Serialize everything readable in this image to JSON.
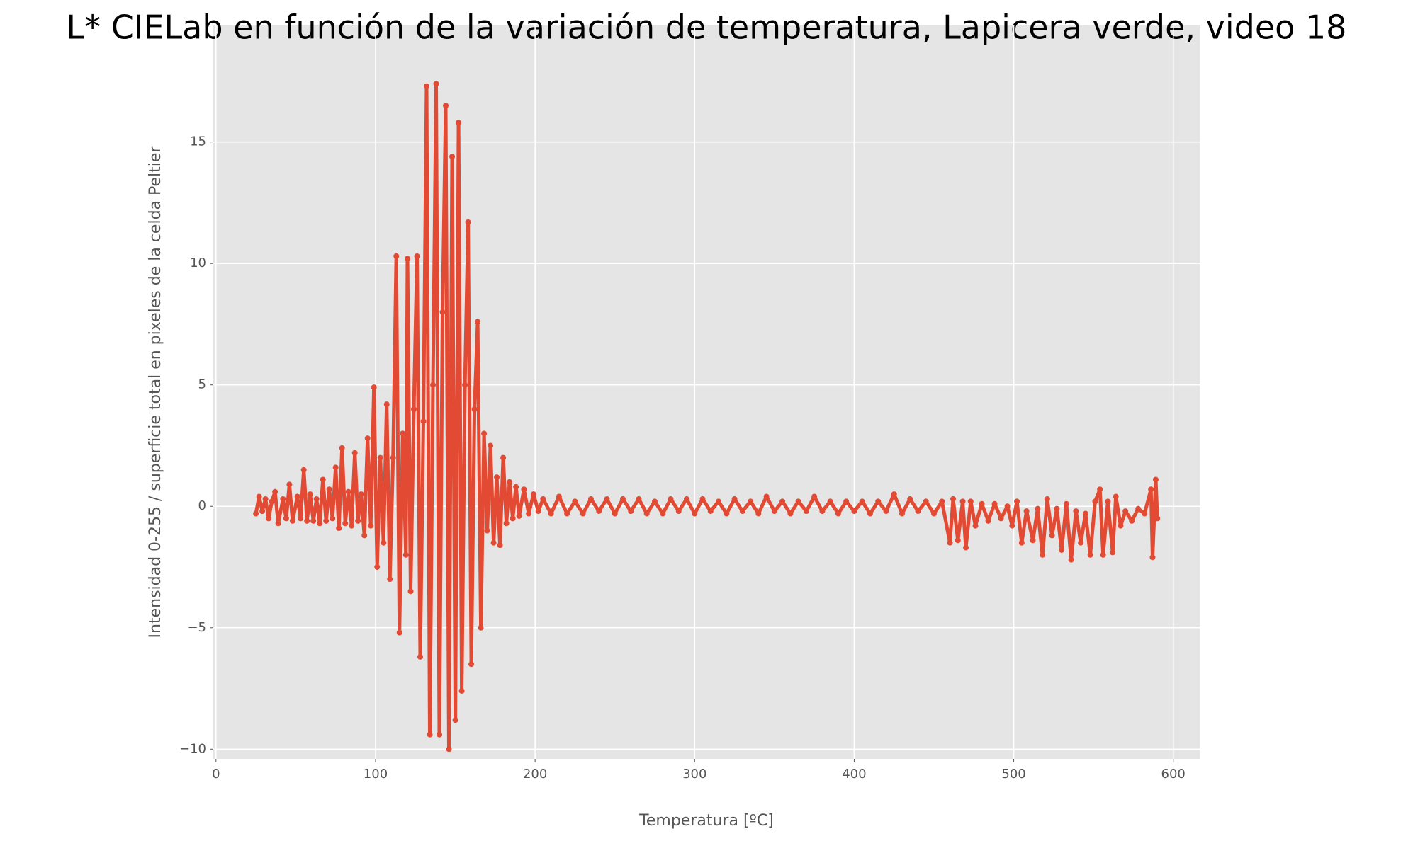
{
  "chart_data": {
    "type": "line",
    "title": "L* CIELab en función de la variación de temperatura, Lapicera verde, video 18",
    "xlabel": "Temperatura [ºC]",
    "ylabel": "Intensidad 0-255 / superficie total en pixeles de la celda Peltier",
    "color": "#E24A33",
    "grid": true,
    "markers": true,
    "xlim": [
      -1.7,
      617
    ],
    "ylim": [
      -10.4,
      19.8
    ],
    "xticks": [
      0,
      100,
      200,
      300,
      400,
      500,
      600
    ],
    "yticks": [
      {
        "value": -10,
        "label": "−10"
      },
      {
        "value": -5,
        "label": "−5"
      },
      0,
      5,
      10,
      15
    ],
    "x": [
      25,
      27,
      29,
      31,
      33,
      35,
      37,
      39,
      42,
      44,
      46,
      48,
      51,
      53,
      55,
      57,
      59,
      61,
      63,
      65,
      67,
      69,
      71,
      73,
      75,
      77,
      79,
      81,
      83,
      85,
      87,
      89,
      91,
      93,
      95,
      97,
      99,
      101,
      103,
      105,
      107,
      109,
      111,
      113,
      115,
      117,
      119,
      120,
      122,
      124,
      126,
      128,
      130,
      132,
      134,
      136,
      138,
      140,
      142,
      144,
      146,
      148,
      150,
      152,
      154,
      156,
      158,
      160,
      162,
      164,
      166,
      168,
      170,
      172,
      174,
      176,
      178,
      180,
      182,
      184,
      186,
      188,
      190,
      193,
      196,
      199,
      202,
      205,
      210,
      215,
      220,
      225,
      230,
      235,
      240,
      245,
      250,
      255,
      260,
      265,
      270,
      275,
      280,
      285,
      290,
      295,
      300,
      305,
      310,
      315,
      320,
      325,
      330,
      335,
      340,
      345,
      350,
      355,
      360,
      365,
      370,
      375,
      380,
      385,
      390,
      395,
      400,
      405,
      410,
      415,
      420,
      425,
      430,
      435,
      440,
      445,
      450,
      455,
      460,
      462,
      465,
      468,
      470,
      473,
      476,
      480,
      484,
      488,
      492,
      496,
      499,
      502,
      505,
      508,
      512,
      515,
      518,
      521,
      524,
      527,
      530,
      533,
      536,
      539,
      542,
      545,
      548,
      551,
      554,
      556,
      559,
      562,
      564,
      567,
      570,
      574,
      578,
      582,
      586,
      587,
      589,
      590
    ],
    "values": [
      -0.3,
      0.4,
      -0.2,
      0.3,
      -0.5,
      0.2,
      0.6,
      -0.7,
      0.3,
      -0.5,
      0.9,
      -0.6,
      0.4,
      -0.5,
      1.5,
      -0.6,
      0.5,
      -0.6,
      0.3,
      -0.7,
      1.1,
      -0.6,
      0.7,
      -0.5,
      1.6,
      -0.9,
      2.4,
      -0.7,
      0.6,
      -0.8,
      2.2,
      -0.6,
      0.5,
      -1.2,
      2.8,
      -0.8,
      4.9,
      -2.5,
      2.0,
      -1.5,
      4.2,
      -3.0,
      2.0,
      10.3,
      -5.2,
      3.0,
      -2.0,
      10.2,
      -3.5,
      4.0,
      10.3,
      -6.2,
      3.5,
      17.3,
      -9.4,
      5.0,
      17.4,
      -9.4,
      8.0,
      16.5,
      -10.0,
      14.4,
      -8.8,
      15.8,
      -7.6,
      5.0,
      11.7,
      -6.5,
      4.0,
      7.6,
      -5.0,
      3.0,
      -1.0,
      2.5,
      -1.5,
      1.2,
      -1.6,
      2.0,
      -0.7,
      1.0,
      -0.5,
      0.8,
      -0.4,
      0.7,
      -0.3,
      0.5,
      -0.2,
      0.3,
      -0.3,
      0.4,
      -0.3,
      0.2,
      -0.3,
      0.3,
      -0.2,
      0.3,
      -0.3,
      0.3,
      -0.2,
      0.3,
      -0.3,
      0.2,
      -0.3,
      0.3,
      -0.2,
      0.3,
      -0.3,
      0.3,
      -0.2,
      0.2,
      -0.3,
      0.3,
      -0.2,
      0.2,
      -0.3,
      0.4,
      -0.2,
      0.2,
      -0.3,
      0.2,
      -0.2,
      0.4,
      -0.2,
      0.2,
      -0.3,
      0.2,
      -0.2,
      0.2,
      -0.3,
      0.2,
      -0.2,
      0.5,
      -0.3,
      0.3,
      -0.2,
      0.2,
      -0.3,
      0.2,
      -1.5,
      0.3,
      -1.4,
      0.2,
      -1.7,
      0.2,
      -0.8,
      0.1,
      -0.6,
      0.1,
      -0.5,
      0.0,
      -0.8,
      0.2,
      -1.5,
      -0.2,
      -1.4,
      -0.1,
      -2.0,
      0.3,
      -1.2,
      -0.1,
      -1.8,
      0.1,
      -2.2,
      -0.2,
      -1.5,
      -0.3,
      -2.0,
      0.2,
      0.7,
      -2.0,
      0.2,
      -1.9,
      0.4,
      -0.8,
      -0.2,
      -0.6,
      -0.1,
      -0.3,
      0.7,
      -2.1,
      1.1,
      -0.5
    ]
  }
}
